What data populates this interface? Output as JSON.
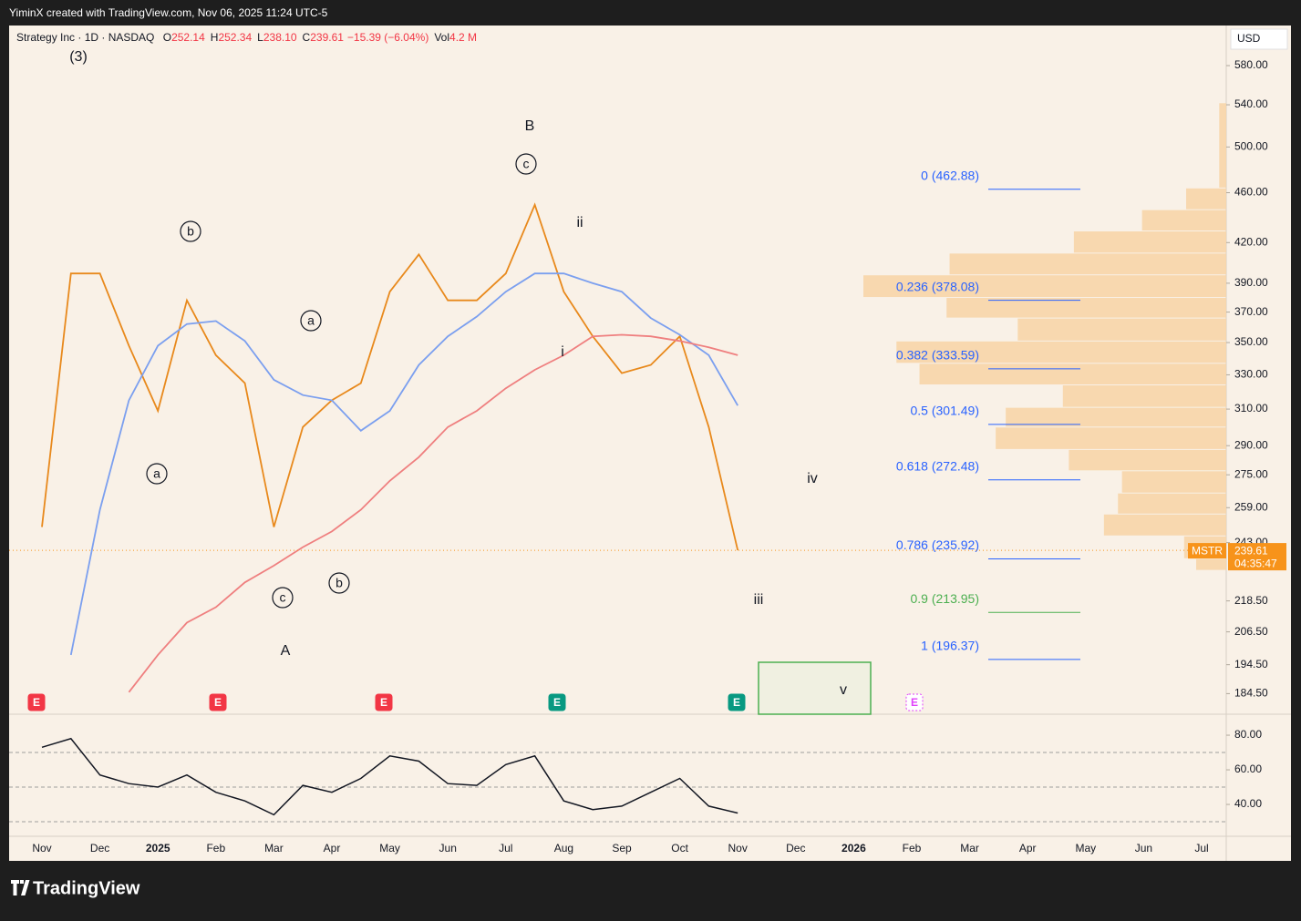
{
  "header": {
    "text": "YiminX created with TradingView.com, Nov 06, 2025 11:24 UTC-5"
  },
  "legend": {
    "symbol": "Strategy Inc · 1D · NASDAQ",
    "items": [
      {
        "label": "O",
        "value": "252.14"
      },
      {
        "label": "H",
        "value": "252.34"
      },
      {
        "label": "L",
        "value": "238.10"
      },
      {
        "label": "C",
        "value": "239.61"
      },
      {
        "label": "",
        "value": "−15.39 (−6.04%)"
      },
      {
        "label": "Vol",
        "value": "4.2 M"
      }
    ]
  },
  "currency": "USD",
  "chart_data": {
    "type": "line",
    "log_scale": true,
    "categories": [
      "Nov",
      null,
      "Dec",
      null,
      "2025",
      null,
      "Feb",
      null,
      "Mar",
      null,
      "Apr",
      null,
      "May",
      null,
      "Jun",
      null,
      "Jul",
      null,
      "Aug",
      null,
      "Sep",
      null,
      "Oct",
      null,
      "Nov",
      null,
      "Dec",
      null,
      "2026",
      null,
      "Feb",
      null,
      "Mar",
      null,
      "Apr",
      null,
      "May",
      null,
      "Jun",
      null,
      "Jul"
    ],
    "series": [
      {
        "color": "#e8891c",
        "values": [
          250,
          397,
          397,
          348,
          309,
          378,
          342,
          325,
          250,
          300,
          315,
          325,
          384,
          411,
          378,
          378,
          397,
          450,
          384,
          354,
          331,
          336,
          354,
          300,
          239.61,
          null,
          null,
          null,
          null,
          null,
          null,
          null,
          null,
          null,
          null,
          null,
          null,
          null,
          null,
          null,
          null
        ]
      },
      {
        "color": "#7b9fef",
        "values": [
          null,
          198,
          258,
          315,
          348,
          362,
          364,
          351,
          327,
          318,
          315,
          298,
          309,
          336,
          354,
          367,
          384,
          397,
          397,
          390,
          384,
          366,
          355,
          342,
          312,
          null,
          null,
          null,
          null,
          null,
          null,
          null,
          null,
          null,
          null,
          null,
          null,
          null,
          null,
          null,
          null
        ]
      },
      {
        "color": "#ef7f7f",
        "values": [
          null,
          null,
          null,
          185,
          198,
          210,
          216,
          226,
          233,
          241,
          248,
          258,
          272,
          284,
          300,
          309,
          322,
          333,
          342,
          354,
          355,
          354,
          351,
          347,
          342,
          null,
          null,
          null,
          null,
          null,
          null,
          null,
          null,
          null,
          null,
          null,
          null,
          null,
          null,
          null,
          null
        ]
      }
    ],
    "ylim": [
      178,
      624
    ],
    "yticks": [
      {
        "value": 580,
        "label": "580.00"
      },
      {
        "value": 540,
        "label": "540.00"
      },
      {
        "value": 500,
        "label": "500.00"
      },
      {
        "value": 460,
        "label": "460.00"
      },
      {
        "value": 420,
        "label": "420.00"
      },
      {
        "value": 390,
        "label": "390.00"
      },
      {
        "value": 370,
        "label": "370.00"
      },
      {
        "value": 350,
        "label": "350.00"
      },
      {
        "value": 330,
        "label": "330.00"
      },
      {
        "value": 310,
        "label": "310.00"
      },
      {
        "value": 290,
        "label": "290.00"
      },
      {
        "value": 275,
        "label": "275.00"
      },
      {
        "value": 259,
        "label": "259.00"
      },
      {
        "value": 243,
        "label": "243.00"
      },
      {
        "value": 218.5,
        "label": "218.50"
      },
      {
        "value": 206.5,
        "label": "206.50"
      },
      {
        "value": 194.5,
        "label": "194.50"
      },
      {
        "value": 184.5,
        "label": "184.50"
      }
    ],
    "last_price": 239.61,
    "last_price_color": "#f7931a"
  },
  "price_tag": {
    "symbol": "MSTR",
    "price": "239.61",
    "countdown": "04:35:47"
  },
  "rsi": {
    "type": "line",
    "color": "#131722",
    "values": [
      73,
      78,
      57,
      52,
      50,
      57,
      47,
      42,
      34,
      51,
      47,
      55,
      68,
      65,
      52,
      51,
      63,
      68,
      42,
      37,
      39,
      47,
      55,
      39,
      35,
      null,
      null,
      null,
      null,
      null,
      null,
      null,
      null,
      null,
      null,
      null,
      null,
      null,
      null,
      null,
      null
    ],
    "ylim": [
      21.6,
      91.6
    ],
    "yticks": [
      {
        "value": 80,
        "label": "80.00"
      },
      {
        "value": 60,
        "label": "60.00"
      },
      {
        "value": 40,
        "label": "40.00"
      }
    ],
    "levels": [
      70,
      50,
      30
    ]
  },
  "fib_levels": [
    {
      "label": "0 (462.88)",
      "value": 462.88,
      "color": "#2962ff"
    },
    {
      "label": "0.236 (378.08)",
      "value": 378.08,
      "color": "#2962ff"
    },
    {
      "label": "0.382 (333.59)",
      "value": 333.59,
      "color": "#2962ff"
    },
    {
      "label": "0.5 (301.49)",
      "value": 301.49,
      "color": "#2962ff"
    },
    {
      "label": "0.618 (272.48)",
      "value": 272.48,
      "color": "#2962ff"
    },
    {
      "label": "0.786 (235.92)",
      "value": 235.92,
      "color": "#2962ff"
    },
    {
      "label": "0.9 (213.95)",
      "value": 213.95,
      "color": "#4caf50"
    },
    {
      "label": "1 (196.37)",
      "value": 196.37,
      "color": "#2962ff"
    }
  ],
  "volume_profile": {
    "color": "#f8d3a4",
    "bins": [
      542,
      464,
      446,
      429,
      412,
      396,
      380,
      366,
      351,
      337,
      324,
      311,
      300,
      288,
      277,
      266,
      256,
      246,
      236,
      231
    ],
    "volumes": [
      7,
      40,
      84,
      152,
      276,
      362,
      279,
      208,
      329,
      306,
      163,
      220,
      230,
      157,
      104,
      108,
      122,
      42,
      30
    ]
  },
  "wave_labels": [
    {
      "text": "(3)",
      "circled": false
    },
    {
      "text": "b",
      "circled": true
    },
    {
      "text": "a",
      "circled": true
    },
    {
      "text": "a",
      "circled": true
    },
    {
      "text": "c",
      "circled": true
    },
    {
      "text": "b",
      "circled": true
    },
    {
      "text": "A",
      "circled": false
    },
    {
      "text": "c",
      "circled": true
    },
    {
      "text": "B",
      "circled": false
    },
    {
      "text": "ii",
      "circled": false
    },
    {
      "text": "i",
      "circled": false
    },
    {
      "text": "iii",
      "circled": false
    },
    {
      "text": "iv",
      "circled": false
    },
    {
      "text": "v",
      "circled": false
    }
  ],
  "earnings": [
    {
      "label": "E",
      "color": "#f23645"
    },
    {
      "label": "E",
      "color": "#f23645"
    },
    {
      "label": "E",
      "color": "#f23645"
    },
    {
      "label": "E",
      "color": "#089981"
    },
    {
      "label": "E",
      "color": "#089981"
    },
    {
      "label": "E",
      "color": "#e040fb"
    }
  ],
  "footer": {
    "brand": "TradingView"
  }
}
